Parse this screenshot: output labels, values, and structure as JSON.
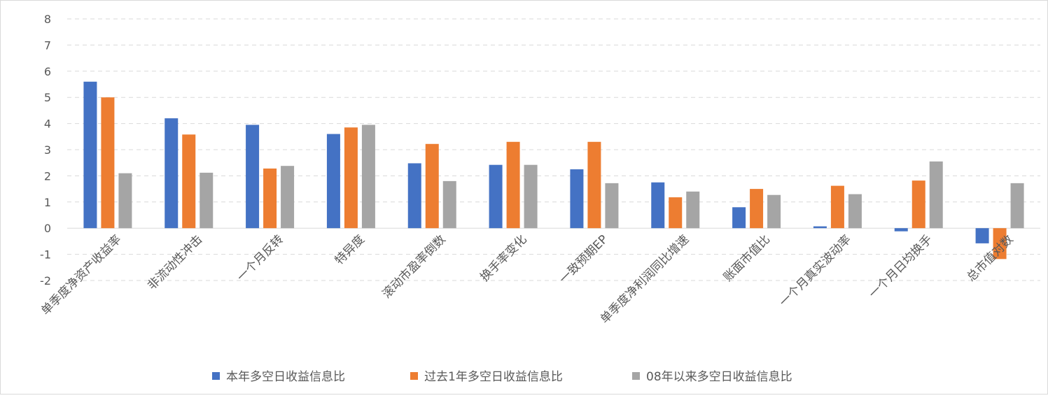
{
  "chart_data": {
    "type": "bar",
    "title": "",
    "xlabel": "",
    "ylabel": "",
    "ylim": [
      -2,
      8
    ],
    "yticks": [
      -2,
      -1,
      0,
      1,
      2,
      3,
      4,
      5,
      6,
      7,
      8
    ],
    "grid": true,
    "legend_position": "bottom",
    "categories": [
      "单季度净资产收益率",
      "非流动性冲击",
      "一个月反转",
      "特异度",
      "滚动市盈率倒数",
      "换手率变化",
      "一致预期EP",
      "单季度净利润同比增速",
      "账面市值比",
      "一个月真实波动率",
      "一个月日均换手",
      "总市值对数"
    ],
    "series": [
      {
        "name": "本年多空日收益信息比",
        "color": "#4472C4",
        "values": [
          5.6,
          4.2,
          3.95,
          3.6,
          2.48,
          2.42,
          2.25,
          1.75,
          0.8,
          0.07,
          -0.12,
          -0.58
        ]
      },
      {
        "name": "过去1年多空日收益信息比",
        "color": "#ED7D31",
        "values": [
          5.0,
          3.58,
          2.28,
          3.85,
          3.22,
          3.3,
          3.3,
          1.18,
          1.5,
          1.62,
          1.82,
          -1.18
        ]
      },
      {
        "name": "08年以来多空日收益信息比",
        "color": "#A5A5A5",
        "values": [
          2.1,
          2.12,
          2.38,
          3.95,
          1.8,
          2.42,
          1.72,
          1.4,
          1.27,
          1.3,
          2.55,
          1.72
        ]
      }
    ]
  }
}
